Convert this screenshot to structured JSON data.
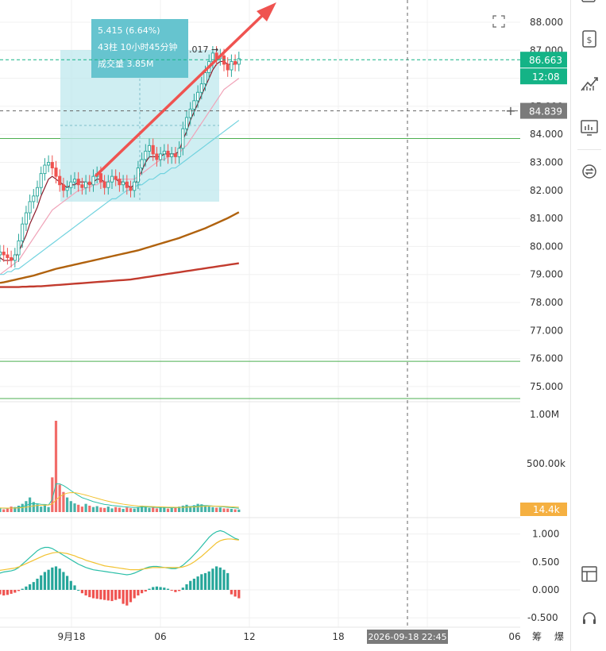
{
  "chart_data": [
    {
      "type": "candlestick",
      "panel": "price",
      "x_ticks": [
        "9月18",
        "06",
        "12",
        "18",
        "06"
      ],
      "y_ticks": [
        88,
        87,
        86,
        85,
        84,
        83,
        82,
        81,
        80,
        79,
        78,
        77,
        76,
        75
      ],
      "y_tick_labels": [
        "88.000",
        "87.000",
        "86.000",
        "85.000",
        "84.000",
        "83.000",
        "82.000",
        "81.000",
        "80.000",
        "79.000",
        "78.000",
        "77.000",
        "76.000",
        "75.000"
      ],
      "ylim": [
        74.6,
        88.6
      ],
      "current_price": 86.663,
      "countdown": "12:08",
      "crosshair_price": 84.839,
      "crosshair_time": "2026-09-18 22:45",
      "horizontal_lines": [
        83.85,
        75.9,
        74.6
      ],
      "high_label": ".017 →",
      "measure_tool": {
        "line1": "5.415 (6.64%)",
        "line2": "43柱 10小时45分钟",
        "line3": "成交量 3.85M"
      },
      "closes": [
        79.8,
        79.7,
        79.6,
        79.5,
        79.7,
        80.2,
        80.8,
        81.2,
        81.6,
        81.8,
        82.1,
        82.6,
        82.9,
        83.0,
        82.8,
        82.5,
        82.2,
        82.0,
        82.1,
        82.3,
        82.4,
        82.2,
        82.1,
        82.3,
        82.2,
        82.5,
        82.6,
        82.3,
        82.1,
        82.3,
        82.5,
        82.4,
        82.2,
        82.3,
        82.1,
        82.0,
        82.3,
        82.8,
        83.1,
        83.4,
        83.6,
        83.3,
        83.1,
        83.3,
        83.4,
        83.2,
        83.3,
        83.2,
        83.5,
        84.2,
        84.6,
        84.9,
        85.2,
        85.5,
        85.8,
        86.2,
        86.6,
        86.9,
        86.7,
        86.8,
        86.5,
        86.3,
        86.6,
        86.5,
        86.7
      ],
      "ma_lines": [
        {
          "color": "#8b1a2a",
          "values": [
            79.6,
            79.5,
            79.5,
            79.5,
            79.6,
            79.8,
            80.1,
            80.4,
            80.8,
            81.1,
            81.4,
            81.8,
            82.1,
            82.4,
            82.5,
            82.4,
            82.3,
            82.2,
            82.1,
            82.2,
            82.2,
            82.3,
            82.3,
            82.3,
            82.2,
            82.3,
            82.4,
            82.4,
            82.3,
            82.3,
            82.4,
            82.4,
            82.3,
            82.3,
            82.2,
            82.1,
            82.2,
            82.4,
            82.7,
            83.0,
            83.2,
            83.2,
            83.2,
            83.2,
            83.3,
            83.3,
            83.3,
            83.3,
            83.4,
            83.8,
            84.1,
            84.5,
            84.8,
            85.1,
            85.4,
            85.7,
            86.0,
            86.3,
            86.5,
            86.6,
            86.6,
            86.5,
            86.5,
            86.5,
            86.6
          ]
        },
        {
          "color": "#f0a3b8",
          "values": [
            79.0,
            79.1,
            79.2,
            79.3,
            79.4,
            79.5,
            79.7,
            79.9,
            80.1,
            80.3,
            80.5,
            80.7,
            80.9,
            81.1,
            81.3,
            81.4,
            81.5,
            81.6,
            81.7,
            81.8,
            81.9,
            82.0,
            82.0,
            82.1,
            82.1,
            82.2,
            82.2,
            82.3,
            82.3,
            82.3,
            82.4,
            82.4,
            82.4,
            82.4,
            82.4,
            82.4,
            82.4,
            82.5,
            82.6,
            82.7,
            82.8,
            82.9,
            83.0,
            83.1,
            83.1,
            83.2,
            83.2,
            83.3,
            83.3,
            83.5,
            83.6,
            83.8,
            84.0,
            84.2,
            84.4,
            84.6,
            84.8,
            85.0,
            85.2,
            85.4,
            85.6,
            85.7,
            85.8,
            85.9,
            86.0
          ]
        },
        {
          "color": "#72d3df",
          "values": [
            79.0,
            79.0,
            79.1,
            79.1,
            79.2,
            79.2,
            79.3,
            79.4,
            79.5,
            79.6,
            79.7,
            79.8,
            79.9,
            80.0,
            80.1,
            80.2,
            80.3,
            80.4,
            80.5,
            80.6,
            80.7,
            80.8,
            80.9,
            81.0,
            81.1,
            81.2,
            81.3,
            81.4,
            81.5,
            81.6,
            81.7,
            81.7,
            81.8,
            81.9,
            82.0,
            82.0,
            82.1,
            82.2,
            82.2,
            82.3,
            82.4,
            82.4,
            82.5,
            82.6,
            82.6,
            82.7,
            82.8,
            82.8,
            82.9,
            83.0,
            83.1,
            83.2,
            83.3,
            83.4,
            83.5,
            83.6,
            83.7,
            83.8,
            83.9,
            84.0,
            84.1,
            84.2,
            84.3,
            84.4,
            84.5
          ]
        },
        {
          "color": "#b0620e",
          "values": [
            78.7,
            78.72,
            78.75,
            78.78,
            78.81,
            78.84,
            78.87,
            78.9,
            78.93,
            78.96,
            79.0,
            79.04,
            79.08,
            79.12,
            79.16,
            79.2,
            79.23,
            79.26,
            79.29,
            79.32,
            79.35,
            79.38,
            79.41,
            79.44,
            79.47,
            79.5,
            79.53,
            79.56,
            79.59,
            79.62,
            79.65,
            79.68,
            79.71,
            79.74,
            79.77,
            79.8,
            79.83,
            79.86,
            79.9,
            79.94,
            79.98,
            80.02,
            80.06,
            80.1,
            80.14,
            80.18,
            80.22,
            80.26,
            80.3,
            80.35,
            80.4,
            80.45,
            80.5,
            80.55,
            80.6,
            80.65,
            80.71,
            80.77,
            80.83,
            80.89,
            80.95,
            81.01,
            81.08,
            81.15,
            81.22
          ]
        },
        {
          "color": "#c23b2e",
          "values": [
            78.55,
            78.55,
            78.55,
            78.55,
            78.55,
            78.55,
            78.56,
            78.56,
            78.57,
            78.57,
            78.58,
            78.58,
            78.59,
            78.6,
            78.61,
            78.62,
            78.63,
            78.64,
            78.65,
            78.66,
            78.67,
            78.68,
            78.69,
            78.7,
            78.71,
            78.72,
            78.73,
            78.74,
            78.75,
            78.76,
            78.77,
            78.78,
            78.79,
            78.8,
            78.81,
            78.82,
            78.84,
            78.86,
            78.88,
            78.9,
            78.92,
            78.94,
            78.96,
            78.98,
            79.0,
            79.02,
            79.04,
            79.06,
            79.08,
            79.1,
            79.12,
            79.14,
            79.16,
            79.18,
            79.2,
            79.22,
            79.24,
            79.26,
            79.28,
            79.3,
            79.32,
            79.34,
            79.36,
            79.38,
            79.4
          ]
        }
      ]
    },
    {
      "type": "bar",
      "panel": "volume",
      "y_tick_labels": [
        "1.00M",
        "500.00k"
      ],
      "current_volume_label": "14.4k",
      "values": [
        45,
        30,
        38,
        60,
        55,
        70,
        90,
        120,
        160,
        110,
        85,
        60,
        75,
        55,
        380,
        1000,
        300,
        220,
        160,
        120,
        95,
        80,
        60,
        90,
        70,
        55,
        65,
        50,
        45,
        60,
        40,
        55,
        48,
        35,
        50,
        42,
        38,
        55,
        70,
        60,
        45,
        50,
        40,
        55,
        48,
        38,
        52,
        45,
        60,
        70,
        80,
        65,
        75,
        90,
        85,
        70,
        60,
        55,
        48,
        50,
        40,
        38,
        35,
        30,
        28
      ]
    },
    {
      "type": "bar",
      "panel": "macd",
      "y_ticks": [
        1.0,
        0.5,
        0.0,
        -0.5
      ],
      "y_tick_labels": [
        "1.000",
        "0.500",
        "0.000",
        "-0.500"
      ],
      "histogram": [
        -0.08,
        -0.1,
        -0.09,
        -0.07,
        -0.05,
        -0.02,
        0.02,
        0.06,
        0.1,
        0.14,
        0.2,
        0.26,
        0.32,
        0.36,
        0.4,
        0.42,
        0.38,
        0.32,
        0.25,
        0.16,
        0.08,
        0.0,
        -0.06,
        -0.1,
        -0.13,
        -0.15,
        -0.16,
        -0.17,
        -0.18,
        -0.19,
        -0.2,
        -0.18,
        -0.16,
        -0.25,
        -0.28,
        -0.22,
        -0.15,
        -0.1,
        -0.06,
        -0.03,
        0.02,
        0.05,
        0.06,
        0.05,
        0.04,
        0.02,
        -0.01,
        -0.04,
        -0.02,
        0.04,
        0.1,
        0.16,
        0.2,
        0.24,
        0.28,
        0.3,
        0.33,
        0.38,
        0.42,
        0.4,
        0.36,
        0.3,
        -0.08,
        -0.12,
        -0.15
      ],
      "dif": [
        0.3,
        0.32,
        0.33,
        0.34,
        0.36,
        0.4,
        0.46,
        0.52,
        0.58,
        0.64,
        0.7,
        0.74,
        0.76,
        0.76,
        0.74,
        0.7,
        0.66,
        0.62,
        0.58,
        0.54,
        0.5,
        0.46,
        0.43,
        0.4,
        0.38,
        0.36,
        0.35,
        0.34,
        0.33,
        0.32,
        0.31,
        0.3,
        0.29,
        0.28,
        0.27,
        0.28,
        0.3,
        0.33,
        0.36,
        0.39,
        0.41,
        0.42,
        0.42,
        0.41,
        0.4,
        0.39,
        0.38,
        0.38,
        0.4,
        0.44,
        0.5,
        0.56,
        0.63,
        0.7,
        0.78,
        0.86,
        0.94,
        1.0,
        1.04,
        1.06,
        1.04,
        1.0,
        0.96,
        0.92,
        0.9
      ],
      "dea": [
        0.35,
        0.36,
        0.37,
        0.38,
        0.39,
        0.41,
        0.44,
        0.47,
        0.5,
        0.53,
        0.56,
        0.59,
        0.62,
        0.64,
        0.66,
        0.67,
        0.67,
        0.66,
        0.65,
        0.63,
        0.61,
        0.58,
        0.56,
        0.53,
        0.51,
        0.49,
        0.47,
        0.45,
        0.43,
        0.42,
        0.41,
        0.4,
        0.39,
        0.38,
        0.37,
        0.36,
        0.36,
        0.36,
        0.37,
        0.38,
        0.39,
        0.4,
        0.4,
        0.4,
        0.4,
        0.4,
        0.4,
        0.4,
        0.4,
        0.41,
        0.43,
        0.46,
        0.5,
        0.55,
        0.6,
        0.66,
        0.72,
        0.78,
        0.84,
        0.88,
        0.9,
        0.91,
        0.91,
        0.9,
        0.89
      ]
    }
  ],
  "sidebar": {
    "top_icons": [
      "cash-icon",
      "trend-icon",
      "chart-board-icon",
      "compare-icon"
    ],
    "bottom_icons": [
      "layout-icon",
      "headset-icon"
    ]
  },
  "footer": {
    "chip_label": "筹",
    "burst_label": "爆"
  },
  "colors": {
    "up": "#26a69a",
    "down": "#ef5350",
    "arrow": "#ef5350",
    "price_badge": "#14b386",
    "crosshair_badge": "#7a7a7a",
    "volume_badge": "#f5b041",
    "measure_box": "#bfe8ee"
  }
}
